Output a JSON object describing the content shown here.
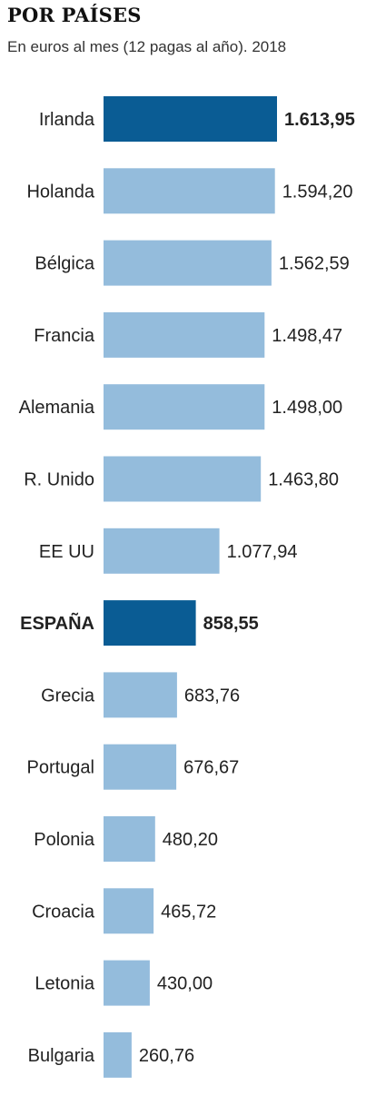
{
  "chart_data": {
    "type": "bar",
    "orientation": "horizontal",
    "title": "POR PAÍSES",
    "subtitle": "En euros al mes (12 pagas al año). 2018",
    "categories": [
      "Irlanda",
      "Holanda",
      "Bélgica",
      "Francia",
      "Alemania",
      "R. Unido",
      "EE UU",
      "ESPAÑA",
      "Grecia",
      "Portugal",
      "Polonia",
      "Croacia",
      "Letonia",
      "Bulgaria"
    ],
    "values": [
      1613.95,
      1594.2,
      1562.59,
      1498.47,
      1498.0,
      1463.8,
      1077.94,
      858.55,
      683.76,
      676.67,
      480.2,
      465.72,
      430.0,
      260.76
    ],
    "value_labels": [
      "1.613,95",
      "1.594,20",
      "1.562,59",
      "1.498,47",
      "1.498,00",
      "1.463,80",
      "1.077,94",
      "858,55",
      "683,76",
      "676,67",
      "480,20",
      "465,72",
      "430,00",
      "260,76"
    ],
    "highlighted": [
      "Irlanda",
      "ESPAÑA"
    ],
    "xlim": [
      0,
      1613.95
    ],
    "grid": false,
    "legend": "none",
    "colors": {
      "bar": "#94bcdc",
      "highlight": "#0a5c94",
      "text": "#222222"
    }
  }
}
